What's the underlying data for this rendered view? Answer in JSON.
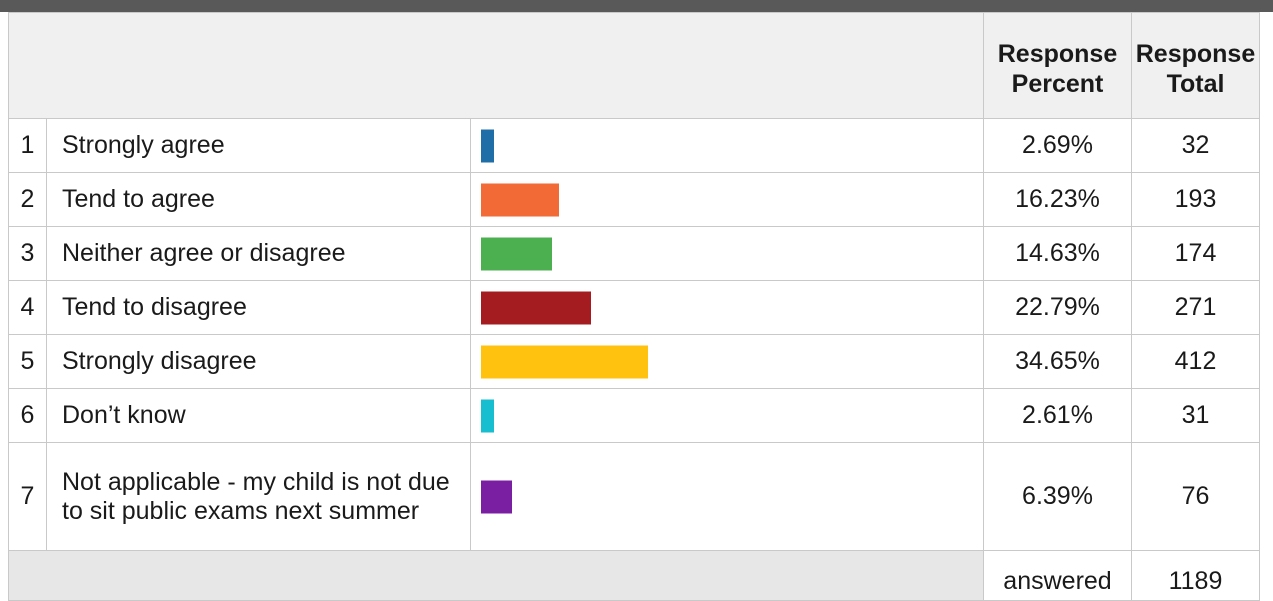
{
  "chart_data": {
    "type": "bar",
    "headers": {
      "percent": [
        "Response",
        "Percent"
      ],
      "total": [
        "Response",
        "Total"
      ]
    },
    "categories": [
      "Strongly agree",
      "Tend to agree",
      "Neither agree or disagree",
      "Tend to disagree",
      "Strongly disagree",
      "Don’t know",
      "Not applicable - my child is not due to sit public exams next summer"
    ],
    "rows": [
      {
        "num": "1",
        "label": "Strongly agree",
        "percent": 2.69,
        "percent_text": "2.69%",
        "total": "32",
        "color": "#1f6ea8"
      },
      {
        "num": "2",
        "label": "Tend to agree",
        "percent": 16.23,
        "percent_text": "16.23%",
        "total": "193",
        "color": "#f26a36"
      },
      {
        "num": "3",
        "label": "Neither agree or disagree",
        "percent": 14.63,
        "percent_text": "14.63%",
        "total": "174",
        "color": "#4caf50"
      },
      {
        "num": "4",
        "label": "Tend to disagree",
        "percent": 22.79,
        "percent_text": "22.79%",
        "total": "271",
        "color": "#a51c20"
      },
      {
        "num": "5",
        "label": "Strongly disagree",
        "percent": 34.65,
        "percent_text": "34.65%",
        "total": "412",
        "color": "#ffc20e"
      },
      {
        "num": "6",
        "label": "Don’t know",
        "percent": 2.61,
        "percent_text": "2.61%",
        "total": "31",
        "color": "#17becf"
      },
      {
        "num": "7",
        "label": "Not applicable - my child is not due to sit public exams next summer",
        "percent": 6.39,
        "percent_text": "6.39%",
        "total": "76",
        "color": "#7b1fa2"
      }
    ],
    "footer": {
      "label": "answered",
      "value": "1189"
    }
  }
}
